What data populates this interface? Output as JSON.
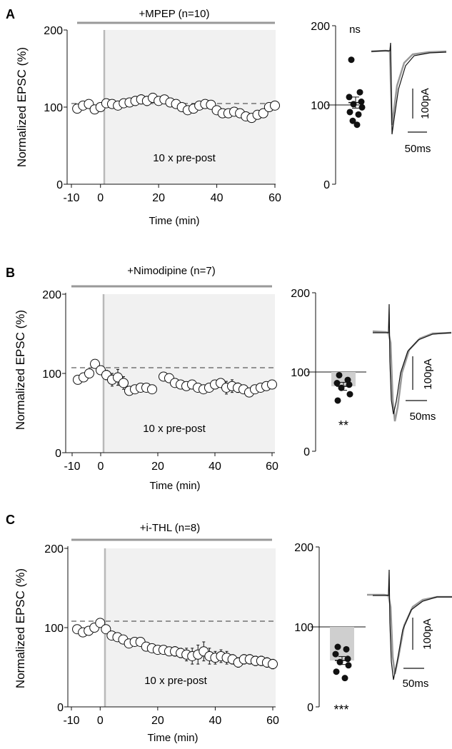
{
  "chart_data": [
    {
      "panel": "A",
      "type": "scatter",
      "condition_label": "+MPEP (n=10)",
      "ylabel": "Normalized EPSC (%)",
      "xlabel": "Time (min)",
      "xlim": [
        -10,
        60
      ],
      "ylim": [
        0,
        200
      ],
      "x_ticks": [
        "-10",
        "0",
        "20",
        "40",
        "60"
      ],
      "y_ticks": [
        "0",
        "100",
        "200"
      ],
      "shaded_label": "10 x pre-post",
      "baseline": 100,
      "timecourse": {
        "x": [
          -8,
          -6,
          -4,
          -2,
          0,
          2,
          4,
          6,
          8,
          10,
          12,
          14,
          16,
          18,
          20,
          22,
          24,
          26,
          28,
          30,
          32,
          34,
          36,
          38,
          40,
          42,
          44,
          46,
          48,
          50,
          52,
          54,
          56,
          58,
          60
        ],
        "y": [
          98,
          102,
          104,
          97,
          100,
          105,
          104,
          102,
          105,
          106,
          108,
          110,
          108,
          112,
          108,
          110,
          106,
          104,
          100,
          96,
          98,
          102,
          104,
          103,
          96,
          92,
          92,
          94,
          92,
          88,
          86,
          90,
          92,
          100,
          102
        ],
        "err": [
          4,
          4,
          4,
          4,
          4,
          5,
          5,
          5,
          5,
          5,
          6,
          6,
          6,
          6,
          5,
          5,
          5,
          5,
          5,
          5,
          5,
          5,
          5,
          5,
          5,
          5,
          5,
          5,
          5,
          5,
          5,
          5,
          5,
          5,
          5
        ]
      },
      "summary": {
        "ylim": [
          0,
          200
        ],
        "y_ticks": [
          "0",
          "100",
          "200"
        ],
        "points": [
          157,
          116,
          110,
          104,
          101,
          97,
          91,
          88,
          80,
          75
        ],
        "mean": 103,
        "sem": 7,
        "significance": "ns",
        "mean_bar_shown": false
      },
      "trace_scale": {
        "amplitude_label": "100pA",
        "time_label": "50ms"
      }
    },
    {
      "panel": "B",
      "type": "scatter",
      "condition_label": "+Nimodipine (n=7)",
      "ylabel": "Normalized EPSC (%)",
      "xlabel": "Time (min)",
      "xlim": [
        -10,
        60
      ],
      "ylim": [
        0,
        200
      ],
      "x_ticks": [
        "-10",
        "0",
        "20",
        "40",
        "60"
      ],
      "y_ticks": [
        "0",
        "100",
        "200"
      ],
      "shaded_label": "10 x pre-post",
      "baseline": 100,
      "timecourse": {
        "x": [
          -8,
          -6,
          -4,
          -2,
          0,
          2,
          4,
          6,
          8,
          10,
          12,
          14,
          16,
          18,
          20,
          22,
          24,
          26,
          28,
          30,
          32,
          34,
          36,
          38,
          40,
          42,
          44,
          46,
          48,
          50,
          52,
          54,
          56,
          58,
          60
        ],
        "y": [
          92,
          95,
          100,
          112,
          104,
          98,
          92,
          95,
          88,
          78,
          80,
          82,
          82,
          80,
          null,
          96,
          94,
          88,
          86,
          84,
          86,
          82,
          80,
          82,
          86,
          88,
          82,
          84,
          82,
          80,
          76,
          80,
          82,
          84,
          86
        ],
        "err": [
          4,
          4,
          4,
          5,
          5,
          6,
          8,
          10,
          8,
          5,
          5,
          5,
          5,
          5,
          0,
          5,
          5,
          5,
          5,
          5,
          5,
          5,
          5,
          5,
          5,
          5,
          8,
          8,
          6,
          5,
          5,
          5,
          5,
          5,
          5
        ]
      },
      "summary": {
        "ylim": [
          0,
          200
        ],
        "y_ticks": [
          "0",
          "100",
          "200"
        ],
        "points": [
          96,
          90,
          86,
          84,
          80,
          72,
          64
        ],
        "mean": 82,
        "sem": 5,
        "significance": "**",
        "mean_bar_shown": true
      },
      "trace_scale": {
        "amplitude_label": "100pA",
        "time_label": "50ms"
      }
    },
    {
      "panel": "C",
      "type": "scatter",
      "condition_label": "+i-THL (n=8)",
      "ylabel": "Normalized EPSC (%)",
      "xlabel": "Time (min)",
      "xlim": [
        -10,
        60
      ],
      "ylim": [
        0,
        200
      ],
      "x_ticks": [
        "-10",
        "0",
        "20",
        "40",
        "60"
      ],
      "y_ticks": [
        "0",
        "100",
        "200"
      ],
      "shaded_label": "10 x pre-post",
      "baseline": 100,
      "timecourse": {
        "x": [
          -8,
          -6,
          -4,
          -2,
          0,
          2,
          4,
          6,
          8,
          10,
          12,
          14,
          16,
          18,
          20,
          22,
          24,
          26,
          28,
          30,
          32,
          34,
          36,
          38,
          40,
          42,
          44,
          46,
          48,
          50,
          52,
          54,
          56,
          58,
          60
        ],
        "y": [
          98,
          94,
          96,
          100,
          106,
          98,
          90,
          88,
          85,
          80,
          82,
          82,
          76,
          74,
          72,
          72,
          70,
          70,
          68,
          66,
          64,
          66,
          70,
          64,
          62,
          64,
          62,
          60,
          56,
          60,
          60,
          58,
          58,
          56,
          54
        ],
        "err": [
          5,
          5,
          5,
          5,
          5,
          5,
          5,
          5,
          5,
          5,
          5,
          5,
          5,
          5,
          5,
          5,
          5,
          6,
          6,
          8,
          10,
          12,
          12,
          10,
          8,
          8,
          8,
          6,
          6,
          6,
          6,
          6,
          6,
          6,
          6
        ]
      },
      "summary": {
        "ylim": [
          0,
          200
        ],
        "y_ticks": [
          "0",
          "100",
          "200"
        ],
        "points": [
          75,
          72,
          66,
          60,
          56,
          52,
          44,
          36
        ],
        "mean": 58,
        "sem": 5,
        "significance": "***",
        "mean_bar_shown": true
      },
      "trace_scale": {
        "amplitude_label": "100pA",
        "time_label": "50ms"
      }
    }
  ]
}
